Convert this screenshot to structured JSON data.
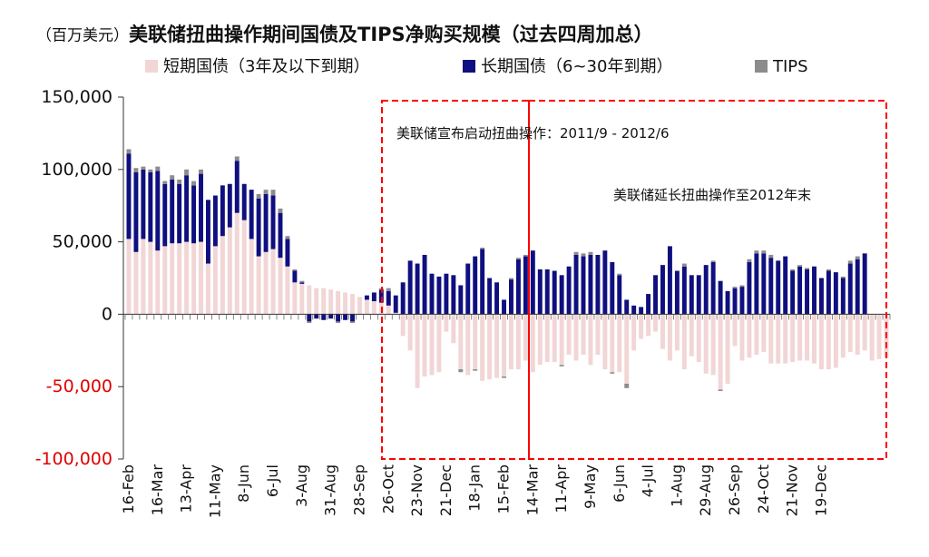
{
  "title_unit": "（百万美元）",
  "title": "美联储扭曲操作期间国债及TIPS净购买规模（过去四周加总）",
  "legend": [
    {
      "label": "短期国债（3年及以下到期）",
      "color": "#f2d5d5"
    },
    {
      "label": "长期国债（6~30年到期）",
      "color": "#0f0f7f"
    },
    {
      "label": "TIPS",
      "color": "#8c8c8c"
    }
  ],
  "colors": {
    "short": "#f2d5d5",
    "long": "#0f0f7f",
    "tips": "#8c8c8c",
    "negative_tick": "#e00000",
    "box": "#ff0000"
  },
  "annotations": [
    {
      "text": "美联储宣布启动扭曲操作：2011/9 - 2012/6"
    },
    {
      "text": "美联储延长扭曲操作至2012年末"
    }
  ],
  "chart_data": {
    "type": "bar",
    "stacked": true,
    "ylim": [
      -100000,
      150000
    ],
    "y_ticks": [
      "150,000",
      "100,000",
      "50,000",
      "0",
      "-50,000",
      "-100,000"
    ],
    "y_tick_values": [
      150000,
      100000,
      50000,
      0,
      -50000,
      -100000
    ],
    "x_tick_labels": [
      "16-Feb",
      "16-Mar",
      "13-Apr",
      "11-May",
      "8-Jun",
      "6-Jul",
      "3-Aug",
      "31-Aug",
      "28-Sep",
      "26-Oct",
      "23-Nov",
      "21-Dec",
      "18-Jan",
      "15-Feb",
      "14-Mar",
      "11-Apr",
      "9-May",
      "6-Jun",
      "4-Jul",
      "1-Aug",
      "29-Aug",
      "26-Sep",
      "24-Oct",
      "21-Nov",
      "19-Dec"
    ],
    "x_tick_every": 4,
    "series": [
      {
        "name": "短期国债（3年及以下到期）",
        "values": [
          52000,
          43000,
          52000,
          50000,
          44000,
          47000,
          49000,
          49000,
          50000,
          49000,
          50000,
          35000,
          47000,
          54000,
          60000,
          70000,
          65000,
          52000,
          40000,
          43000,
          45000,
          39000,
          33000,
          22000,
          21000,
          20000,
          18000,
          18000,
          17000,
          16000,
          15000,
          14000,
          12000,
          10000,
          9000,
          8000,
          6000,
          1000,
          -15000,
          -25000,
          -51000,
          -43000,
          -42000,
          -40000,
          -12000,
          -20000,
          -38000,
          -42000,
          -38000,
          -46000,
          -45000,
          -44000,
          -43000,
          -38000,
          -38000,
          -32000,
          -40000,
          -35000,
          -33000,
          -33000,
          -35000,
          -28000,
          -32000,
          -28000,
          -35000,
          -28000,
          -38000,
          -40000,
          -40000,
          -48000,
          -25000,
          -17000,
          -15000,
          -12000,
          -24000,
          -32000,
          -25000,
          -38000,
          -29000,
          -33000,
          -41000,
          -42000,
          -52000,
          -48000,
          -22000,
          -32000,
          -30000,
          -28000,
          -26000,
          -34000,
          -34000,
          -34000,
          -33000,
          -32000,
          -32000,
          -34000,
          -38000,
          -38000,
          -37000,
          -30000,
          -26000,
          -28000,
          -25000,
          -32000,
          -31000,
          -30000
        ]
      },
      {
        "name": "长期国债（6~30年到期）",
        "values": [
          59000,
          55000,
          48000,
          48000,
          55000,
          43000,
          44000,
          41000,
          46000,
          40000,
          47000,
          44000,
          35000,
          35000,
          30000,
          36000,
          25000,
          34000,
          40000,
          40000,
          37000,
          31000,
          19000,
          8000,
          1000,
          -5000,
          -3000,
          -4000,
          -3000,
          -5000,
          -4000,
          -5000,
          0,
          3000,
          6000,
          9000,
          10000,
          12000,
          22000,
          37000,
          35000,
          41000,
          28000,
          26000,
          28000,
          27000,
          20000,
          35000,
          40000,
          45000,
          25000,
          22000,
          10000,
          24000,
          38000,
          40000,
          44000,
          31000,
          31000,
          30000,
          27000,
          33000,
          41000,
          40000,
          41000,
          41000,
          44000,
          36000,
          27000,
          10000,
          6000,
          5000,
          14000,
          27000,
          34000,
          47000,
          30000,
          33000,
          27000,
          27000,
          34000,
          36000,
          23000,
          16000,
          18000,
          19000,
          36000,
          42000,
          42000,
          39000,
          37000,
          40000,
          30000,
          33000,
          31000,
          33000,
          25000,
          30000,
          29000,
          25000,
          35000,
          38000,
          42000
        ]
      },
      {
        "name": "TIPS",
        "values": [
          3000,
          3000,
          2000,
          2000,
          3000,
          2000,
          3000,
          3000,
          4000,
          3000,
          3000,
          0,
          0,
          0,
          0,
          3000,
          0,
          0,
          3000,
          3000,
          4000,
          3000,
          2000,
          1000,
          1000,
          -1000,
          0,
          0,
          0,
          -1000,
          0,
          -1000,
          0,
          0,
          0,
          1000,
          2000,
          0,
          0,
          0,
          0,
          0,
          0,
          0,
          0,
          0,
          -2000,
          0,
          -1000,
          1000,
          0,
          0,
          -1000,
          1000,
          1000,
          1000,
          0,
          0,
          0,
          0,
          -1000,
          0,
          2000,
          2000,
          2000,
          0,
          0,
          -1000,
          1000,
          -3000,
          0,
          0,
          0,
          0,
          0,
          0,
          0,
          2000,
          0,
          0,
          0,
          1000,
          -1000,
          0,
          1000,
          1000,
          2000,
          2000,
          2000,
          2000,
          0,
          0,
          1000,
          1000,
          1000,
          0,
          0,
          1000,
          0,
          1000,
          2000,
          2000
        ]
      }
    ]
  }
}
